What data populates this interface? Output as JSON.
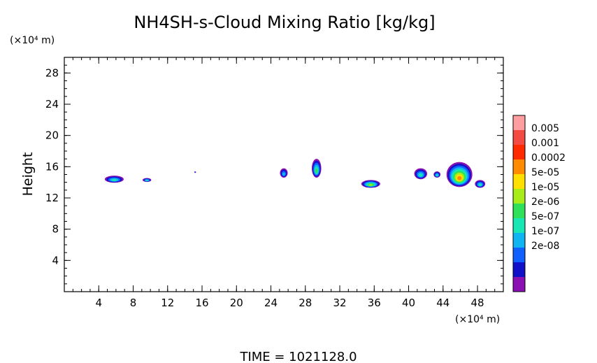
{
  "chart_data": {
    "type": "heatmap",
    "title": "NH4SH-s-Cloud Mixing Ratio [kg/kg]",
    "ylabel": "Height",
    "y_unit": "(×10⁴ m)",
    "x_unit": "(×10⁴ m)",
    "xlim": [
      0,
      51
    ],
    "ylim": [
      0,
      30
    ],
    "x_ticks": [
      4,
      8,
      12,
      16,
      20,
      24,
      28,
      32,
      36,
      40,
      44,
      48
    ],
    "y_ticks": [
      4,
      8,
      12,
      16,
      20,
      24,
      28
    ],
    "footer": "TIME =  1021128.0",
    "colorbar": {
      "labels": [
        "0.005",
        "0.001",
        "0.0002",
        "5e-05",
        "1e-05",
        "2e-06",
        "5e-07",
        "1e-07",
        "2e-08"
      ],
      "colors": [
        "#ff9ea0",
        "#f44a44",
        "#ff2a00",
        "#ff8c00",
        "#ffe000",
        "#a8ec18",
        "#2ee05a",
        "#18e6b4",
        "#10b4f0",
        "#1060ff",
        "#1010c8",
        "#8a10b4"
      ]
    },
    "cloud_regions": [
      {
        "x": 5.8,
        "y": 14.4,
        "w": 2.2,
        "h": 0.9,
        "level": 3
      },
      {
        "x": 9.6,
        "y": 14.3,
        "w": 1.0,
        "h": 0.5,
        "level": 3
      },
      {
        "x": 15.2,
        "y": 15.3,
        "w": 0.2,
        "h": 0.2,
        "level": 1
      },
      {
        "x": 25.5,
        "y": 15.2,
        "w": 0.9,
        "h": 1.2,
        "level": 2
      },
      {
        "x": 29.3,
        "y": 15.8,
        "w": 1.1,
        "h": 2.4,
        "level": 4
      },
      {
        "x": 35.6,
        "y": 13.8,
        "w": 2.2,
        "h": 1.0,
        "level": 5
      },
      {
        "x": 41.4,
        "y": 15.1,
        "w": 1.5,
        "h": 1.4,
        "level": 3
      },
      {
        "x": 43.3,
        "y": 15.0,
        "w": 0.8,
        "h": 0.8,
        "level": 3
      },
      {
        "x": 45.9,
        "y": 15.0,
        "w": 3.0,
        "h": 3.2,
        "level": 7
      },
      {
        "x": 48.3,
        "y": 13.8,
        "w": 1.2,
        "h": 1.0,
        "level": 3
      }
    ]
  }
}
